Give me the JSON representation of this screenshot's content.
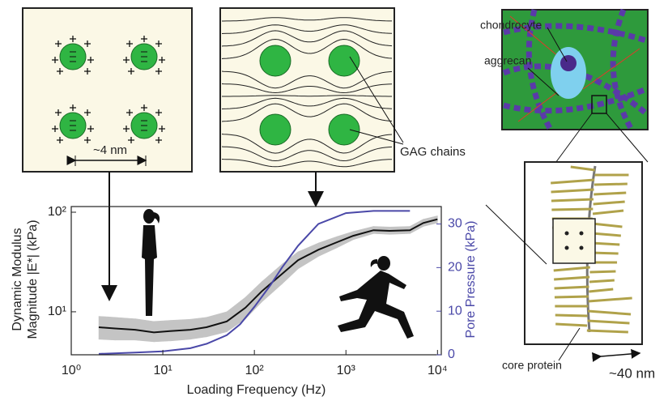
{
  "chart_data": {
    "type": "line",
    "xlabel": "Loading Frequency (Hz)",
    "ylabel": [
      "Dynamic Modulus",
      "Magnitude |E*| (kPa)"
    ],
    "y2label": "Pore Pressure (kPa)",
    "xscale": "log",
    "yscale": "log",
    "xlim": [
      1,
      11000
    ],
    "xticks": [
      {
        "value": 1,
        "label": "10⁰"
      },
      {
        "value": 10,
        "label": "10¹"
      },
      {
        "value": 100,
        "label": "10²"
      },
      {
        "value": 1000,
        "label": "10³"
      },
      {
        "value": 10000,
        "label": "10⁴"
      }
    ],
    "ylim": [
      3.7,
      114
    ],
    "yticks": [
      {
        "value": 10,
        "label": "10¹"
      },
      {
        "value": 100,
        "label": "10²"
      }
    ],
    "y2lim": [
      0,
      34
    ],
    "y2ticks": [
      0,
      10,
      20,
      30
    ],
    "y2color": "#4a48a8",
    "series": [
      {
        "color": "#111111",
        "band_color": "#c4c4c4",
        "x": [
          2,
          3,
          5,
          8,
          12,
          20,
          30,
          50,
          80,
          120,
          200,
          300,
          500,
          800,
          1200,
          2000,
          3000,
          5000,
          7000,
          10000
        ],
        "values": [
          7,
          6.8,
          6.6,
          6.2,
          6.4,
          6.6,
          7,
          8,
          11,
          16,
          24,
          33,
          42,
          50,
          58,
          66,
          65,
          66,
          78,
          85
        ],
        "lower": [
          5.3,
          5.2,
          5.2,
          5,
          5.1,
          5.3,
          5.6,
          6.3,
          8.5,
          12.5,
          19,
          27,
          36,
          44,
          53,
          61,
          60,
          61,
          72,
          78
        ],
        "upper": [
          9,
          8.8,
          8.5,
          8,
          8.2,
          8.4,
          8.8,
          10,
          14,
          20,
          30,
          40,
          49,
          57,
          64,
          72,
          71,
          72,
          85,
          92
        ]
      },
      {
        "color": "#4a48a8",
        "axis": "y2",
        "x": [
          2,
          5,
          10,
          20,
          30,
          50,
          70,
          100,
          150,
          200,
          300,
          500,
          1000,
          2000,
          5000
        ],
        "values": [
          0.2,
          0.5,
          0.8,
          1.5,
          2.5,
          4.5,
          7,
          11,
          16,
          20,
          25,
          30,
          32.5,
          33,
          33
        ]
      }
    ],
    "annotations": [
      "~4 nm",
      "chondrocyte",
      "aggrecan",
      "GAG chains",
      "core protein",
      "~40 nm"
    ]
  }
}
